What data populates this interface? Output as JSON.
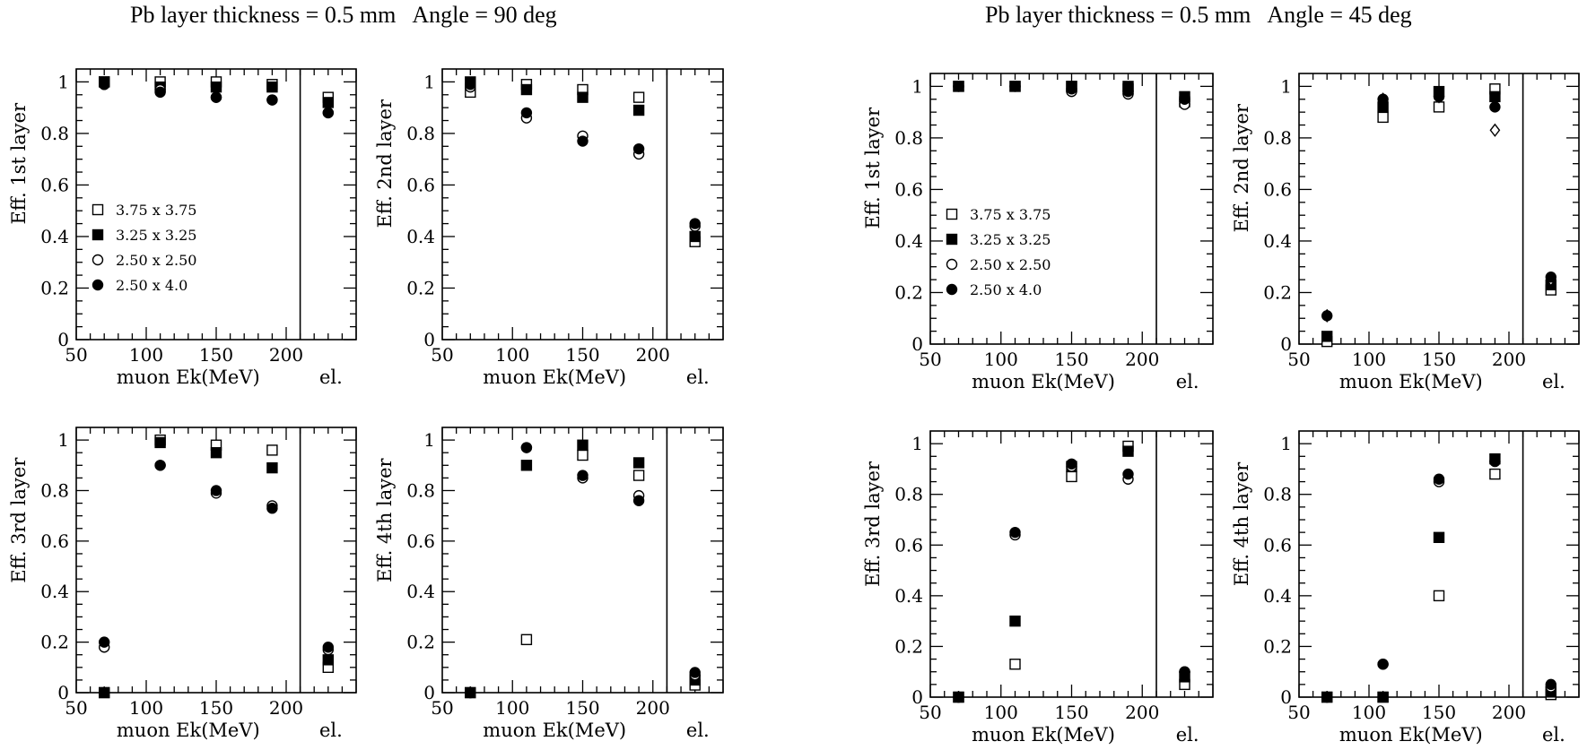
{
  "titles": [
    "Pb layer thickness = 0.5 mm   Angle = 90 deg",
    "Pb layer thickness = 0.5 mm   Angle = 45 deg"
  ],
  "legend": [
    "3.75 x 3.75",
    "3.25 x 3.25",
    "2.50 x 2.50",
    "2.50 x 4.0"
  ],
  "chart_data": [
    {
      "type": "scatter",
      "group": "Angle = 90 deg",
      "ylabel": "Eff. 1st layer",
      "xlabel": "muon Ek(MeV)",
      "extra_label": "el.",
      "xticks": [
        50,
        100,
        150,
        200
      ],
      "yticks": [
        "0",
        "0.2",
        "0.4",
        "0.6",
        "0.8",
        "1"
      ],
      "xlim": [
        50,
        250
      ],
      "ylim": [
        0,
        1.05
      ],
      "legend": "left-middle",
      "x": [
        70,
        110,
        150,
        190,
        230
      ],
      "series": [
        {
          "name": "3.75 x 3.75",
          "marker": "open-square",
          "values": [
            1.0,
            1.0,
            1.0,
            0.99,
            0.94
          ]
        },
        {
          "name": "3.25 x 3.25",
          "marker": "filled-square",
          "values": [
            1.0,
            0.98,
            0.98,
            0.98,
            0.92
          ]
        },
        {
          "name": "2.50 x 2.50",
          "marker": "open-circle",
          "values": [
            0.99,
            0.97,
            0.94,
            0.93,
            0.88
          ]
        },
        {
          "name": "2.50 x 4.0",
          "marker": "filled-circle",
          "values": [
            0.99,
            0.96,
            0.94,
            0.93,
            0.88
          ]
        }
      ]
    },
    {
      "type": "scatter",
      "group": "Angle = 90 deg",
      "ylabel": "Eff. 2nd layer",
      "xlabel": "muon Ek(MeV)",
      "extra_label": "el.",
      "xticks": [
        50,
        100,
        150,
        200
      ],
      "yticks": [
        "0",
        "0.2",
        "0.4",
        "0.6",
        "0.8",
        "1"
      ],
      "xlim": [
        50,
        250
      ],
      "ylim": [
        0,
        1.05
      ],
      "x": [
        70,
        110,
        150,
        190,
        230
      ],
      "series": [
        {
          "name": "3.75 x 3.75",
          "marker": "open-square",
          "values": [
            0.96,
            0.99,
            0.97,
            0.94,
            0.38
          ]
        },
        {
          "name": "3.25 x 3.25",
          "marker": "filled-square",
          "values": [
            1.0,
            0.97,
            0.94,
            0.89,
            0.4
          ]
        },
        {
          "name": "2.50 x 2.50",
          "marker": "open-circle",
          "values": [
            0.98,
            0.86,
            0.79,
            0.72,
            0.44
          ]
        },
        {
          "name": "2.50 x 4.0",
          "marker": "filled-circle",
          "values": [
            0.99,
            0.88,
            0.77,
            0.74,
            0.45
          ]
        }
      ]
    },
    {
      "type": "scatter",
      "group": "Angle = 90 deg",
      "ylabel": "Eff. 3rd layer",
      "xlabel": "muon Ek(MeV)",
      "extra_label": "el.",
      "xticks": [
        50,
        100,
        150,
        200
      ],
      "yticks": [
        "0",
        "0.2",
        "0.4",
        "0.6",
        "0.8",
        "1"
      ],
      "xlim": [
        50,
        250
      ],
      "ylim": [
        0,
        1.05
      ],
      "x": [
        70,
        110,
        150,
        190,
        230
      ],
      "series": [
        {
          "name": "3.75 x 3.75",
          "marker": "open-square",
          "values": [
            0.0,
            1.0,
            0.98,
            0.96,
            0.1
          ]
        },
        {
          "name": "3.25 x 3.25",
          "marker": "filled-square",
          "values": [
            0.0,
            0.99,
            0.95,
            0.89,
            0.13
          ]
        },
        {
          "name": "2.50 x 2.50",
          "marker": "open-circle",
          "values": [
            0.18,
            0.9,
            0.79,
            0.74,
            0.17
          ]
        },
        {
          "name": "2.50 x 4.0",
          "marker": "filled-circle",
          "values": [
            0.2,
            0.9,
            0.8,
            0.73,
            0.18
          ]
        }
      ]
    },
    {
      "type": "scatter",
      "group": "Angle = 90 deg",
      "ylabel": "Eff. 4th layer",
      "xlabel": "muon Ek(MeV)",
      "extra_label": "el.",
      "xticks": [
        50,
        100,
        150,
        200
      ],
      "yticks": [
        "0",
        "0.2",
        "0.4",
        "0.6",
        "0.8",
        "1"
      ],
      "xlim": [
        50,
        250
      ],
      "ylim": [
        0,
        1.05
      ],
      "x": [
        70,
        110,
        150,
        190,
        230
      ],
      "series": [
        {
          "name": "3.75 x 3.75",
          "marker": "open-square",
          "values": [
            0.0,
            0.21,
            0.94,
            0.86,
            0.03
          ]
        },
        {
          "name": "3.25 x 3.25",
          "marker": "filled-square",
          "values": [
            0.0,
            0.9,
            0.98,
            0.91,
            0.05
          ]
        },
        {
          "name": "2.50 x 2.50",
          "marker": "open-circle",
          "values": [
            0.0,
            0.97,
            0.85,
            0.78,
            0.07
          ]
        },
        {
          "name": "2.50 x 4.0",
          "marker": "filled-circle",
          "values": [
            0.0,
            0.97,
            0.86,
            0.76,
            0.08
          ]
        }
      ]
    },
    {
      "type": "scatter",
      "group": "Angle = 45 deg",
      "ylabel": "Eff. 1st layer",
      "xlabel": "muon Ek(MeV)",
      "extra_label": "el.",
      "xticks": [
        50,
        100,
        150,
        200
      ],
      "yticks": [
        "0",
        "0.2",
        "0.4",
        "0.6",
        "0.8",
        "1"
      ],
      "xlim": [
        50,
        250
      ],
      "ylim": [
        0,
        1.05
      ],
      "legend": "left-middle",
      "x": [
        70,
        110,
        150,
        190,
        230
      ],
      "series": [
        {
          "name": "3.75 x 3.75",
          "marker": "open-square",
          "values": [
            1.0,
            1.0,
            1.0,
            0.99,
            0.94
          ]
        },
        {
          "name": "3.25 x 3.25",
          "marker": "filled-square",
          "values": [
            1.0,
            1.0,
            1.0,
            1.0,
            0.96
          ]
        },
        {
          "name": "2.50 x 2.50",
          "marker": "open-circle",
          "values": [
            1.0,
            1.0,
            0.98,
            0.97,
            0.93
          ]
        },
        {
          "name": "2.50 x 4.0",
          "marker": "filled-circle",
          "values": [
            1.0,
            1.0,
            0.99,
            0.98,
            0.95
          ]
        }
      ]
    },
    {
      "type": "scatter",
      "group": "Angle = 45 deg",
      "ylabel": "Eff. 2nd layer",
      "xlabel": "muon Ek(MeV)",
      "extra_label": "el.",
      "xticks": [
        50,
        100,
        150,
        200
      ],
      "yticks": [
        "0",
        "0.2",
        "0.4",
        "0.6",
        "0.8",
        "1"
      ],
      "xlim": [
        50,
        250
      ],
      "ylim": [
        0,
        1.05
      ],
      "x": [
        70,
        110,
        150,
        190,
        230
      ],
      "series": [
        {
          "name": "3.75 x 3.75",
          "marker": "open-square",
          "values": [
            0.01,
            0.88,
            0.92,
            0.99,
            0.21
          ]
        },
        {
          "name": "3.25 x 3.25",
          "marker": "filled-square",
          "values": [
            0.03,
            0.92,
            0.98,
            0.96,
            0.23
          ]
        },
        {
          "name": "2.50 x 2.50",
          "marker": "open-diamond",
          "values": [
            0.11,
            0.95,
            0.96,
            0.83,
            0.25
          ]
        },
        {
          "name": "2.50 x 4.0",
          "marker": "filled-circle",
          "values": [
            0.11,
            0.95,
            0.96,
            0.92,
            0.26
          ]
        }
      ]
    },
    {
      "type": "scatter",
      "group": "Angle = 45 deg",
      "ylabel": "Eff. 3rd layer",
      "xlabel": "muon Ek(MeV)",
      "extra_label": "el.",
      "xticks": [
        50,
        100,
        150,
        200
      ],
      "yticks": [
        "0",
        "0.2",
        "0.4",
        "0.6",
        "0.8",
        "1"
      ],
      "xlim": [
        50,
        250
      ],
      "ylim": [
        0,
        1.05
      ],
      "x": [
        70,
        110,
        150,
        190,
        230
      ],
      "series": [
        {
          "name": "3.75 x 3.75",
          "marker": "open-square",
          "values": [
            0.0,
            0.13,
            0.87,
            0.99,
            0.05
          ]
        },
        {
          "name": "3.25 x 3.25",
          "marker": "filled-square",
          "values": [
            0.0,
            0.3,
            0.91,
            0.97,
            0.08
          ]
        },
        {
          "name": "2.50 x 2.50",
          "marker": "open-circle",
          "values": [
            0.0,
            0.64,
            0.91,
            0.86,
            0.1
          ]
        },
        {
          "name": "2.50 x 4.0",
          "marker": "filled-circle",
          "values": [
            0.0,
            0.65,
            0.92,
            0.88,
            0.1
          ]
        }
      ]
    },
    {
      "type": "scatter",
      "group": "Angle = 45 deg",
      "ylabel": "Eff. 4th layer",
      "xlabel": "muon Ek(MeV)",
      "extra_label": "el.",
      "xticks": [
        50,
        100,
        150,
        200
      ],
      "yticks": [
        "0",
        "0.2",
        "0.4",
        "0.6",
        "0.8",
        "1"
      ],
      "xlim": [
        50,
        250
      ],
      "ylim": [
        0,
        1.05
      ],
      "x": [
        70,
        110,
        150,
        190,
        230
      ],
      "series": [
        {
          "name": "3.75 x 3.75",
          "marker": "open-square",
          "values": [
            0.0,
            0.0,
            0.4,
            0.88,
            0.01
          ]
        },
        {
          "name": "3.25 x 3.25",
          "marker": "filled-square",
          "values": [
            0.0,
            0.0,
            0.63,
            0.94,
            0.02
          ]
        },
        {
          "name": "2.50 x 2.50",
          "marker": "open-circle",
          "values": [
            0.0,
            0.13,
            0.85,
            0.93,
            0.04
          ]
        },
        {
          "name": "2.50 x 4.0",
          "marker": "filled-circle",
          "values": [
            0.0,
            0.13,
            0.86,
            0.93,
            0.05
          ]
        }
      ]
    }
  ]
}
